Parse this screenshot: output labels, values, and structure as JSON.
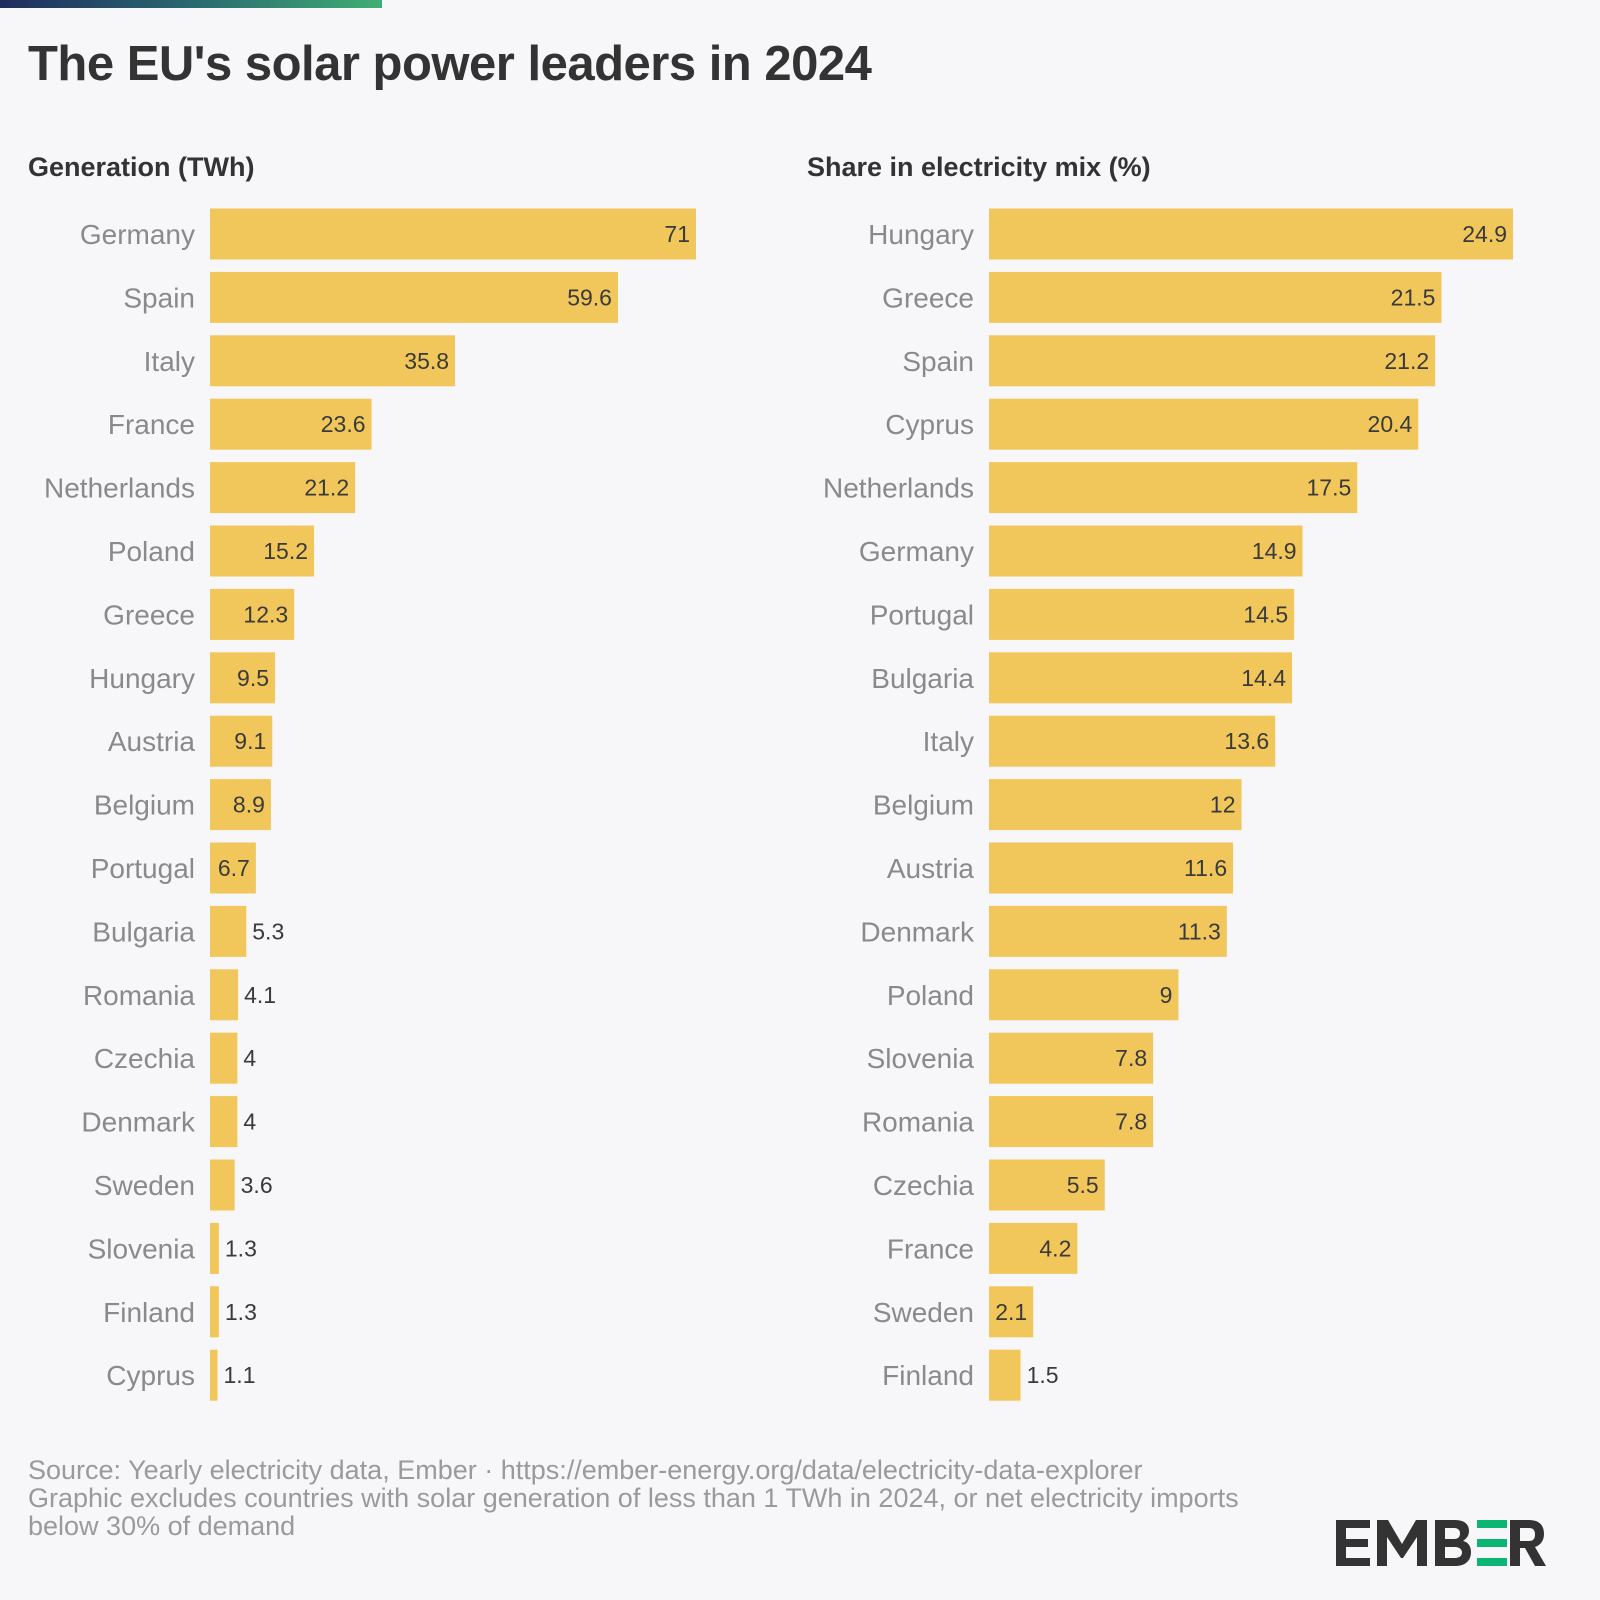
{
  "title": "The EU's solar power leaders in 2024",
  "colors": {
    "bar": "#f1c75b",
    "accent_gradient": [
      "#1f2c5e",
      "#3fae74"
    ],
    "logo_green": "#0cb572"
  },
  "chart_data": [
    {
      "type": "bar",
      "orientation": "horizontal",
      "title": "Generation (TWh)",
      "categories": [
        "Germany",
        "Spain",
        "Italy",
        "France",
        "Netherlands",
        "Poland",
        "Greece",
        "Hungary",
        "Austria",
        "Belgium",
        "Portugal",
        "Bulgaria",
        "Romania",
        "Czechia",
        "Denmark",
        "Sweden",
        "Slovenia",
        "Finland",
        "Cyprus"
      ],
      "values": [
        71,
        59.6,
        35.8,
        23.6,
        21.2,
        15.2,
        12.3,
        9.5,
        9.1,
        8.9,
        6.7,
        5.3,
        4.1,
        4,
        4,
        3.6,
        1.3,
        1.3,
        1.1
      ],
      "xlim": [
        0,
        71
      ],
      "grid": false
    },
    {
      "type": "bar",
      "orientation": "horizontal",
      "title": "Share in electricity mix (%)",
      "categories": [
        "Hungary",
        "Greece",
        "Spain",
        "Cyprus",
        "Netherlands",
        "Germany",
        "Portugal",
        "Bulgaria",
        "Italy",
        "Belgium",
        "Austria",
        "Denmark",
        "Poland",
        "Slovenia",
        "Romania",
        "Czechia",
        "France",
        "Sweden",
        "Finland"
      ],
      "values": [
        24.9,
        21.5,
        21.2,
        20.4,
        17.5,
        14.9,
        14.5,
        14.4,
        13.6,
        12,
        11.6,
        11.3,
        9,
        7.8,
        7.8,
        5.5,
        4.2,
        2.1,
        1.5
      ],
      "xlim": [
        0,
        24.9
      ],
      "grid": false
    }
  ],
  "footer": {
    "source": "Source: Yearly electricity data, Ember · https://ember-energy.org/data/electricity-data-explorer",
    "note": "Graphic excludes countries with solar generation of less than 1 TWh in 2024, or net electricity imports below 30% of demand"
  },
  "logo": "EMBER"
}
